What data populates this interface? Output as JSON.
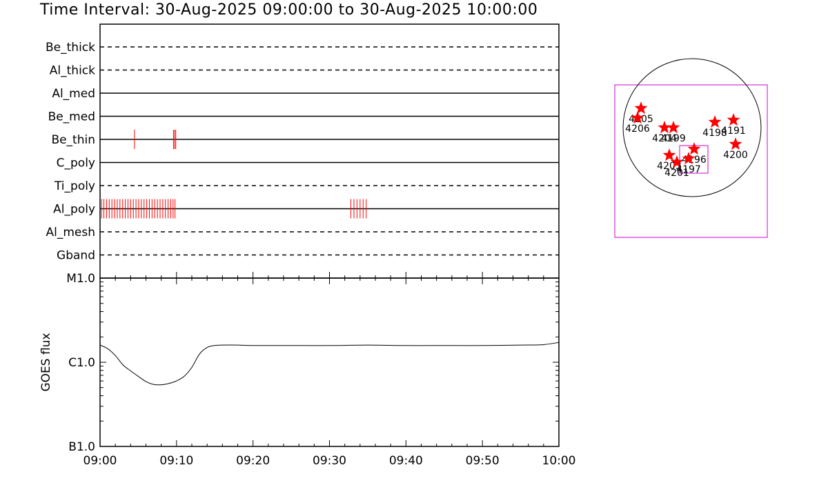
{
  "title": "Time Interval: 30-Aug-2025 09:00:00 to 30-Aug-2025 10:00:00",
  "colors": {
    "flare_ticks": "#ff0000",
    "fov_box": "#cc00cc",
    "ar_markers": "#ff0000",
    "axes": "#000000"
  },
  "chart_data": [
    {
      "type": "line",
      "name": "filter-channels",
      "x_range": [
        "09:00",
        "10:00"
      ],
      "channels": [
        {
          "label": "Be_thick",
          "style": "dashed",
          "events": []
        },
        {
          "label": "Al_thick",
          "style": "dashed",
          "events": []
        },
        {
          "label": "Al_med",
          "style": "solid",
          "events": []
        },
        {
          "label": "Be_med",
          "style": "solid",
          "events": []
        },
        {
          "label": "Be_thin",
          "style": "solid",
          "events": [
            4.5,
            9.6,
            9.75,
            9.9
          ]
        },
        {
          "label": "C_poly",
          "style": "solid",
          "events": []
        },
        {
          "label": "Ti_poly",
          "style": "dashed",
          "events": []
        },
        {
          "label": "Al_poly",
          "style": "solid",
          "events": [
            0.2,
            0.5,
            0.85,
            1.2,
            1.55,
            1.9,
            2.25,
            2.6,
            2.95,
            3.3,
            3.65,
            4.0,
            4.35,
            4.7,
            5.05,
            5.4,
            5.75,
            6.1,
            6.45,
            6.8,
            7.15,
            7.5,
            7.85,
            8.2,
            8.55,
            8.9,
            9.25,
            9.55,
            9.8,
            32.8,
            33.2,
            33.6,
            34.0,
            34.4,
            34.8
          ]
        },
        {
          "label": "Al_mesh",
          "style": "dashed",
          "events": []
        },
        {
          "label": "Gband",
          "style": "dashed",
          "events": []
        }
      ]
    },
    {
      "type": "line",
      "name": "goes-flux",
      "ylabel": "GOES flux",
      "y_scale": "log",
      "y_ticks": [
        {
          "value": 1e-07,
          "label": "B1.0"
        },
        {
          "value": 1e-06,
          "label": "C1.0"
        },
        {
          "value": 1e-05,
          "label": "M1.0"
        }
      ],
      "ylim": [
        1e-07,
        1e-05
      ],
      "x_ticks": [
        "09:00",
        "09:10",
        "09:20",
        "09:30",
        "09:40",
        "09:50",
        "10:00"
      ],
      "x": [
        0,
        1,
        2,
        3,
        4,
        5,
        6,
        7,
        8,
        9,
        10,
        11,
        12,
        13,
        14,
        15,
        16,
        18,
        20,
        25,
        30,
        35,
        40,
        45,
        50,
        55,
        58,
        60
      ],
      "y": [
        1.6e-06,
        1.45e-06,
        1.2e-06,
        9.3e-07,
        7.9e-07,
        6.8e-07,
        5.9e-07,
        5.45e-07,
        5.4e-07,
        5.6e-07,
        6e-07,
        6.8e-07,
        8.7e-07,
        1.25e-06,
        1.5e-06,
        1.58e-06,
        1.6e-06,
        1.6e-06,
        1.58e-06,
        1.58e-06,
        1.58e-06,
        1.6e-06,
        1.58e-06,
        1.58e-06,
        1.58e-06,
        1.6e-06,
        1.62e-06,
        1.72e-06
      ]
    },
    {
      "type": "scatter",
      "name": "active-region-map",
      "regions": [
        {
          "id": "4205",
          "x": -0.74,
          "y": 0.28
        },
        {
          "id": "4206",
          "x": -0.79,
          "y": 0.14
        },
        {
          "id": "4204",
          "x": -0.4,
          "y": 0.0
        },
        {
          "id": "4199",
          "x": -0.27,
          "y": 0.0
        },
        {
          "id": "4203",
          "x": -0.33,
          "y": -0.4
        },
        {
          "id": "4201",
          "x": -0.22,
          "y": -0.5
        },
        {
          "id": "4196",
          "x": 0.03,
          "y": -0.31
        },
        {
          "id": "4197",
          "x": -0.05,
          "y": -0.45
        },
        {
          "id": "4198",
          "x": 0.33,
          "y": 0.08
        },
        {
          "id": "4191",
          "x": 0.6,
          "y": 0.11
        },
        {
          "id": "4200",
          "x": 0.63,
          "y": -0.24
        }
      ]
    }
  ]
}
